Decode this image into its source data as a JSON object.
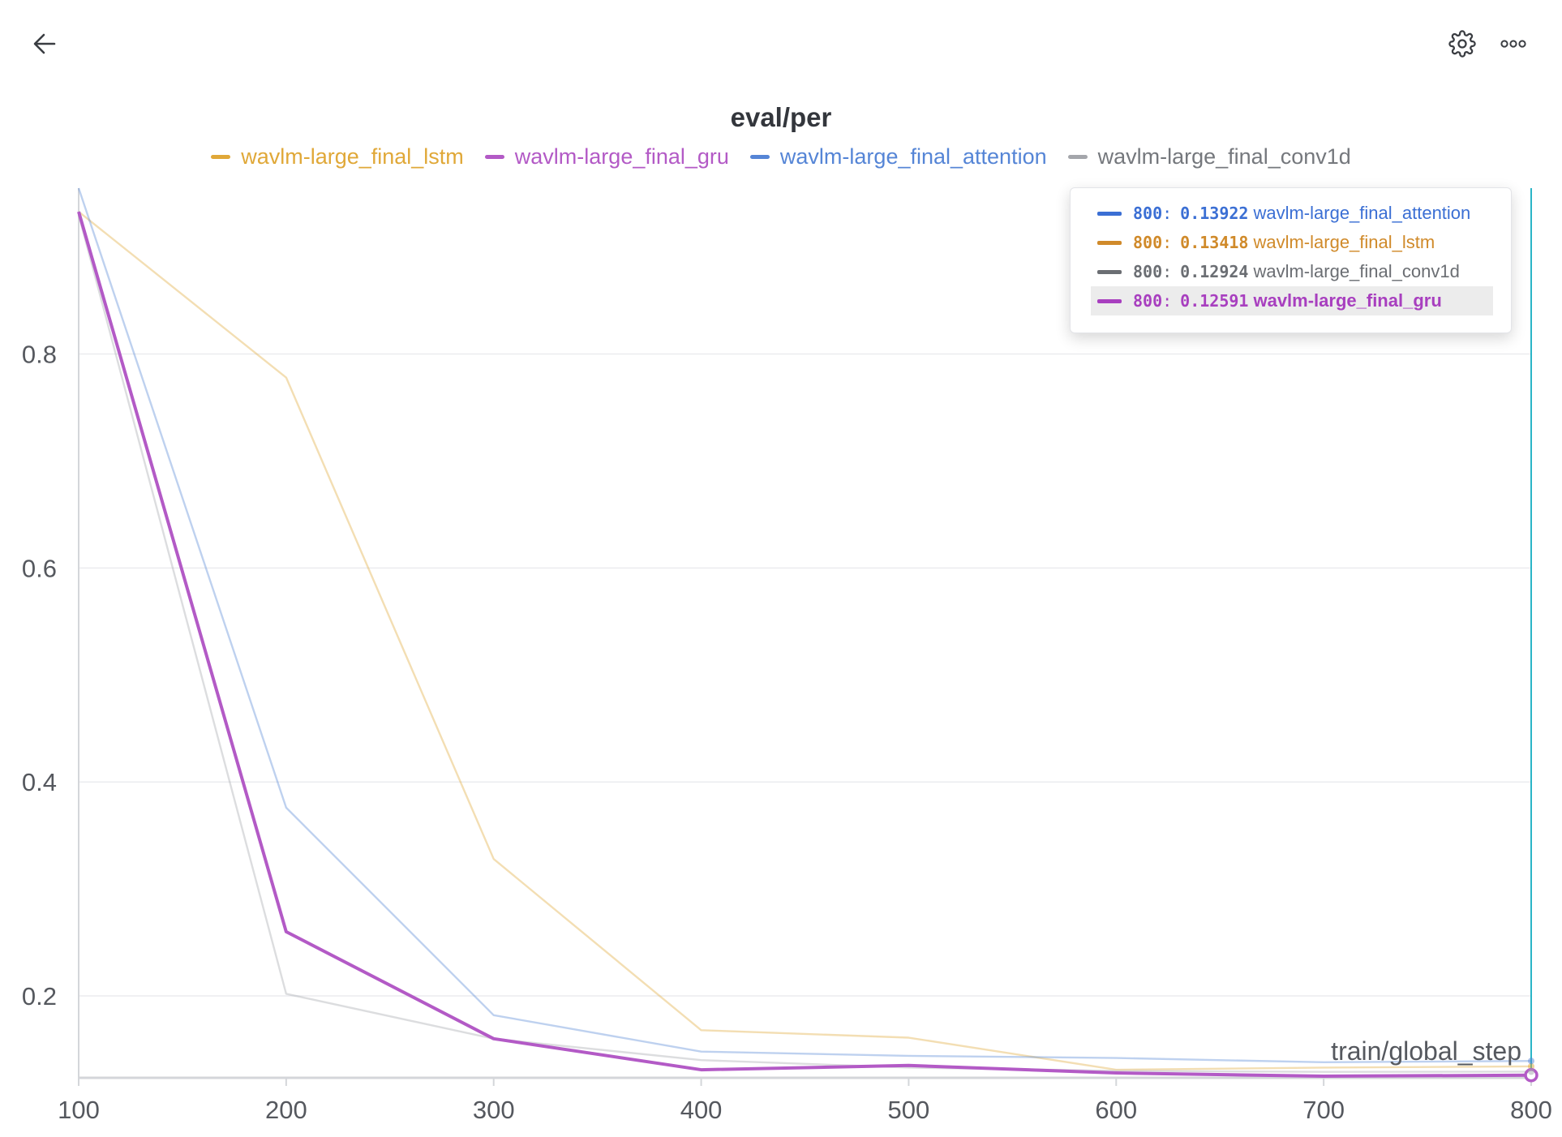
{
  "toolbar": {
    "back_icon": "arrow-left-icon",
    "settings_icon": "gear-icon",
    "more_icon": "more-dots-icon"
  },
  "colors": {
    "lstm": "#e0a838",
    "gru": "#b35ac6",
    "attention": "#5585d6",
    "conv1d": "#a4a6ab",
    "crosshair": "#2ab5c7"
  },
  "chart_data": {
    "type": "line",
    "title": "eval/per",
    "xlabel": "train/global_step",
    "ylabel": "",
    "x": [
      100,
      200,
      300,
      400,
      500,
      600,
      700,
      800
    ],
    "xticks": [
      "100",
      "200",
      "300",
      "400",
      "500",
      "600",
      "700",
      "800"
    ],
    "yticks": [
      "0.2",
      "0.4",
      "0.6",
      "0.8"
    ],
    "xlim": [
      100,
      800
    ],
    "ylim": [
      0.125,
      0.955
    ],
    "grid": true,
    "legend_position": "top-center",
    "series": [
      {
        "name": "wavlm-large_final_lstm",
        "color": "#e0a838",
        "values": [
          0.933,
          0.778,
          0.328,
          0.168,
          0.161,
          0.131,
          0.133,
          0.13418
        ],
        "highlight": false
      },
      {
        "name": "wavlm-large_final_gru",
        "color": "#b35ac6",
        "values": [
          0.933,
          0.26,
          0.16,
          0.131,
          0.135,
          0.128,
          0.125,
          0.12591
        ],
        "highlight": true
      },
      {
        "name": "wavlm-large_final_attention",
        "color": "#5585d6",
        "values": [
          0.955,
          0.376,
          0.182,
          0.148,
          0.144,
          0.142,
          0.138,
          0.13922
        ],
        "highlight": false
      },
      {
        "name": "wavlm-large_final_conv1d",
        "color": "#a4a6ab",
        "values": [
          0.93,
          0.202,
          0.16,
          0.14,
          0.133,
          0.13,
          0.129,
          0.12924
        ],
        "highlight": false
      }
    ],
    "legend": [
      "wavlm-large_final_lstm",
      "wavlm-large_final_gru",
      "wavlm-large_final_attention",
      "wavlm-large_final_conv1d"
    ],
    "crosshair_x": 800,
    "tooltip": [
      {
        "step": "800",
        "value": "0.13922",
        "name": "wavlm-large_final_attention",
        "color": "#3b6fd4",
        "highlight": false
      },
      {
        "step": "800",
        "value": "0.13418",
        "name": "wavlm-large_final_lstm",
        "color": "#d08a2a",
        "highlight": false
      },
      {
        "step": "800",
        "value": "0.12924",
        "name": "wavlm-large_final_conv1d",
        "color": "#6b6e73",
        "highlight": false
      },
      {
        "step": "800",
        "value": "0.12591",
        "name": "wavlm-large_final_gru",
        "color": "#a83fbf",
        "highlight": true
      }
    ]
  }
}
